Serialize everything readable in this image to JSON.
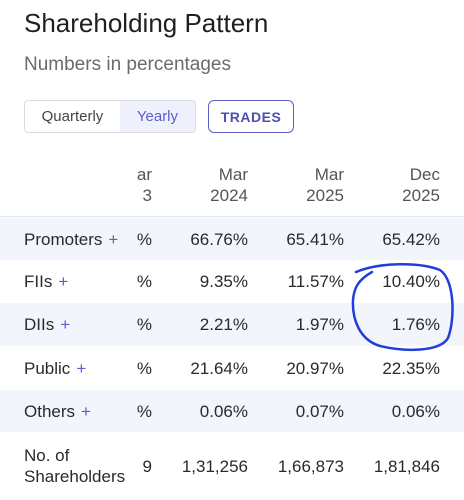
{
  "header": {
    "title": "Shareholding Pattern",
    "subtitle": "Numbers in percentages"
  },
  "tabs": [
    "Quarterly",
    "Yearly"
  ],
  "button": "TRADES",
  "table": {
    "columns": [
      [
        "ar",
        "3"
      ],
      [
        "Mar",
        "2024"
      ],
      [
        "Mar",
        "2025"
      ],
      [
        "Dec",
        "2025"
      ]
    ],
    "rows": [
      {
        "label": [
          "Promoters"
        ],
        "expand": "+",
        "cells": [
          "%",
          "66.76%",
          "65.41%",
          "65.42%"
        ]
      },
      {
        "label": [
          "FIIs"
        ],
        "expand": "+",
        "cells": [
          "%",
          "9.35%",
          "11.57%",
          "10.40%"
        ]
      },
      {
        "label": [
          "DIIs"
        ],
        "expand": "+",
        "cells": [
          "%",
          "2.21%",
          "1.97%",
          "1.76%"
        ]
      },
      {
        "label": [
          "Public"
        ],
        "expand": "+",
        "cells": [
          "%",
          "21.64%",
          "20.97%",
          "22.35%"
        ]
      },
      {
        "label": [
          "Others"
        ],
        "expand": "+",
        "cells": [
          "%",
          "0.06%",
          "0.07%",
          "0.06%"
        ]
      },
      {
        "label": [
          "No. of",
          "Shareholders"
        ],
        "cells": [
          "9",
          "1,31,256",
          "1,66,873",
          "1,81,846"
        ]
      }
    ]
  }
}
